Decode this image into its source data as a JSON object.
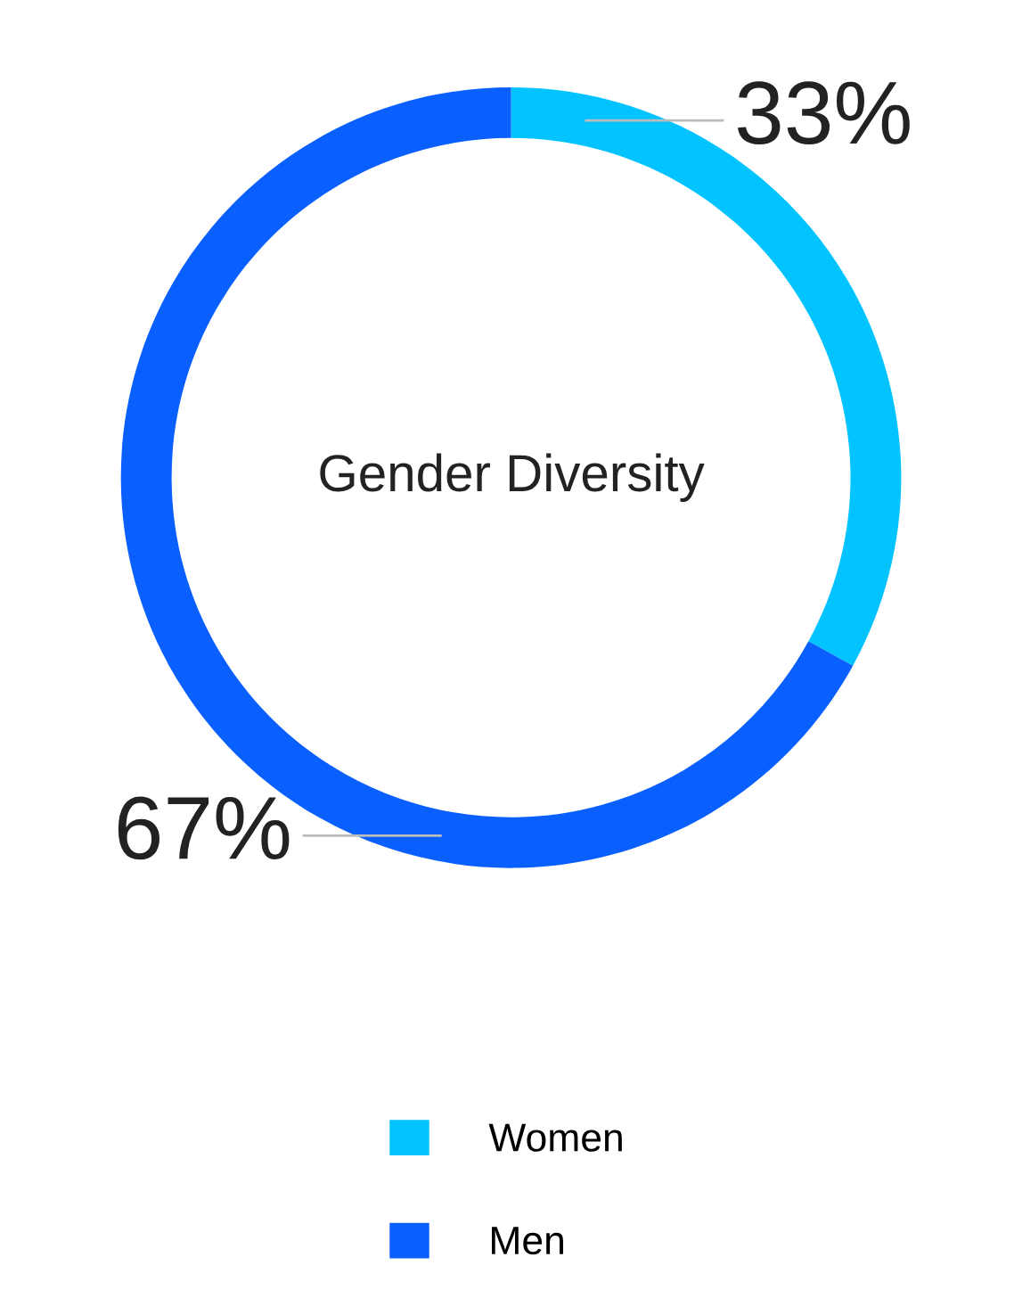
{
  "chart_data": {
    "type": "donut",
    "title": "Gender Diversity",
    "categories": [
      "Women",
      "Men"
    ],
    "values": [
      33,
      67
    ],
    "colors": [
      "#00c3ff",
      "#0a5fff"
    ],
    "value_labels": [
      "33%",
      "67%"
    ],
    "legend": "bottom"
  }
}
